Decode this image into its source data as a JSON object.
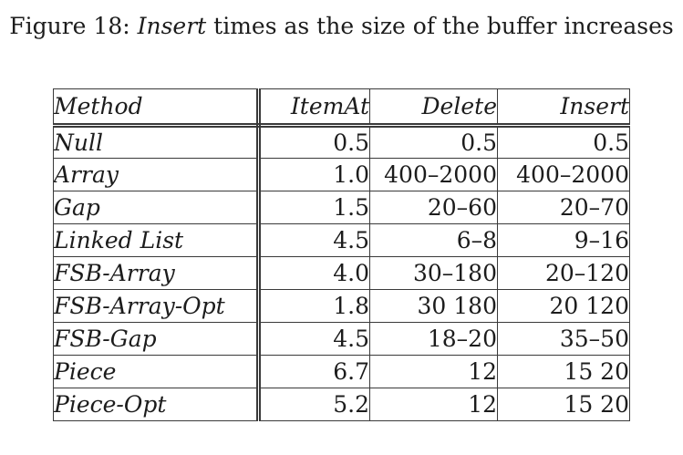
{
  "figure": {
    "caption_prefix": "Figure 18: ",
    "caption_emphasis": "Insert",
    "caption_suffix": " times as the size of the buffer increases"
  },
  "table": {
    "headers": {
      "method": "Method",
      "item_at": "ItemAt",
      "delete": "Delete",
      "insert": "Insert"
    },
    "rows": [
      {
        "method": "Null",
        "item_at": "0.5",
        "delete": "0.5",
        "insert": "0.5"
      },
      {
        "method": "Array",
        "item_at": "1.0",
        "delete": "400–2000",
        "insert": "400–2000"
      },
      {
        "method": "Gap",
        "item_at": "1.5",
        "delete": "20–60",
        "insert": "20–70"
      },
      {
        "method": "Linked List",
        "item_at": "4.5",
        "delete": "6–8",
        "insert": "9–16"
      },
      {
        "method": "FSB-Array",
        "item_at": "4.0",
        "delete": "30–180",
        "insert": "20–120"
      },
      {
        "method": "FSB-Array-Opt",
        "item_at": "1.8",
        "delete": "30 180",
        "insert": "20 120"
      },
      {
        "method": "FSB-Gap",
        "item_at": "4.5",
        "delete": "18–20",
        "insert": "35–50"
      },
      {
        "method": "Piece",
        "item_at": "6.7",
        "delete": "12",
        "insert": "15 20"
      },
      {
        "method": "Piece-Opt",
        "item_at": "5.2",
        "delete": "12",
        "insert": "15 20"
      }
    ]
  }
}
